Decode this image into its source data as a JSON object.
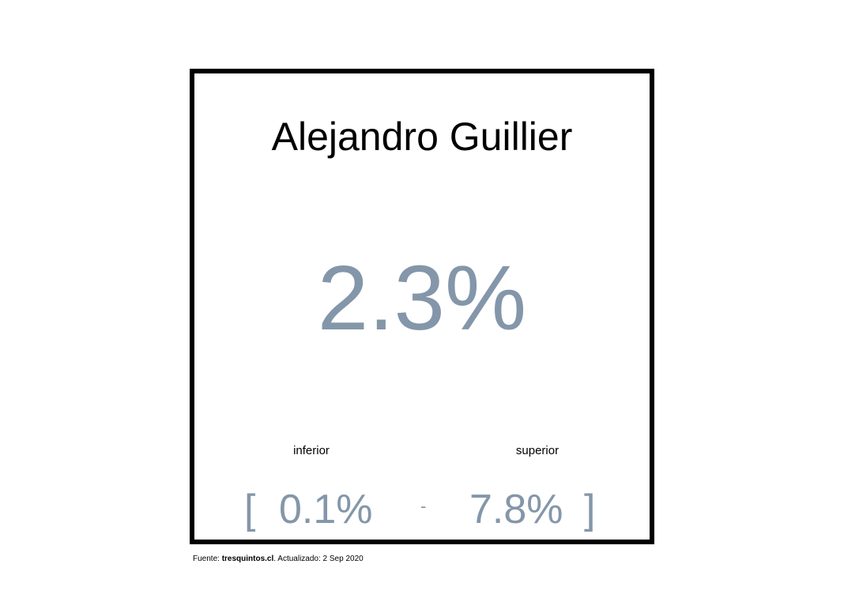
{
  "card": {
    "title": "Alejandro Guillier",
    "value": "2.3%",
    "lower_label": "inferior",
    "upper_label": "superior",
    "bracket_open": "[",
    "lower_value": "0.1%",
    "separator": "-",
    "upper_value": "7.8%",
    "bracket_close": "]"
  },
  "footer": {
    "prefix": "Fuente: ",
    "source": "tresquintos.cl",
    "suffix": ". Actualizado: 2 Sep 2020"
  },
  "colors": {
    "value": "#8496a9",
    "border": "#000000"
  }
}
